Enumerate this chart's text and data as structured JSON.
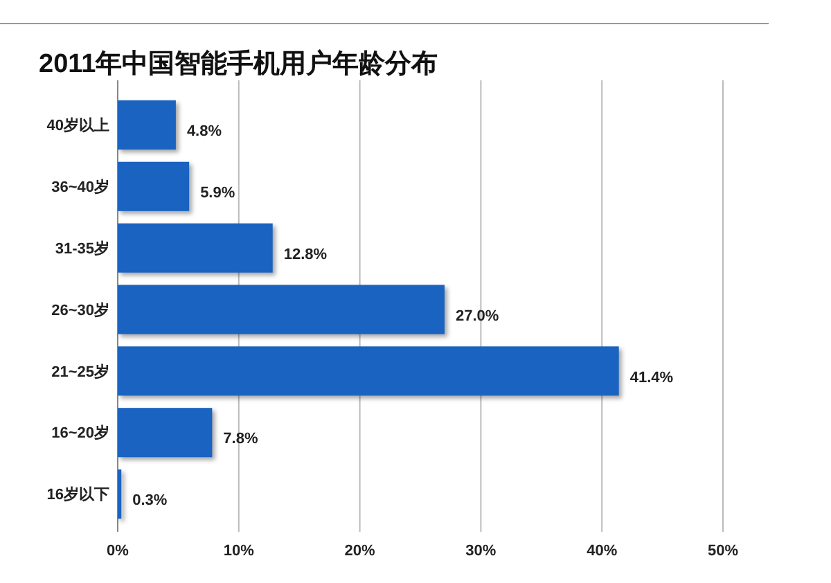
{
  "chart_data": {
    "type": "bar",
    "orientation": "horizontal",
    "title": "2011年中国智能手机用户年龄分布",
    "categories": [
      "40岁以上",
      "36~40岁",
      "31-35岁",
      "26~30岁",
      "21~25岁",
      "16~20岁",
      "16岁以下"
    ],
    "values": [
      4.8,
      5.9,
      12.8,
      27.0,
      41.4,
      7.8,
      0.3
    ],
    "value_labels": [
      "4.8%",
      "5.9%",
      "12.8%",
      "27.0%",
      "41.4%",
      "7.8%",
      "0.3%"
    ],
    "color": "#1a63c0",
    "xlim": [
      0,
      50
    ],
    "xticks": [
      {
        "value": 0,
        "label": "0%"
      },
      {
        "value": 10,
        "label": "10%"
      },
      {
        "value": 20,
        "label": "20%"
      },
      {
        "value": 30,
        "label": "30%"
      },
      {
        "value": 40,
        "label": "40%"
      },
      {
        "value": 50,
        "label": "50%"
      }
    ],
    "grid": "x"
  }
}
